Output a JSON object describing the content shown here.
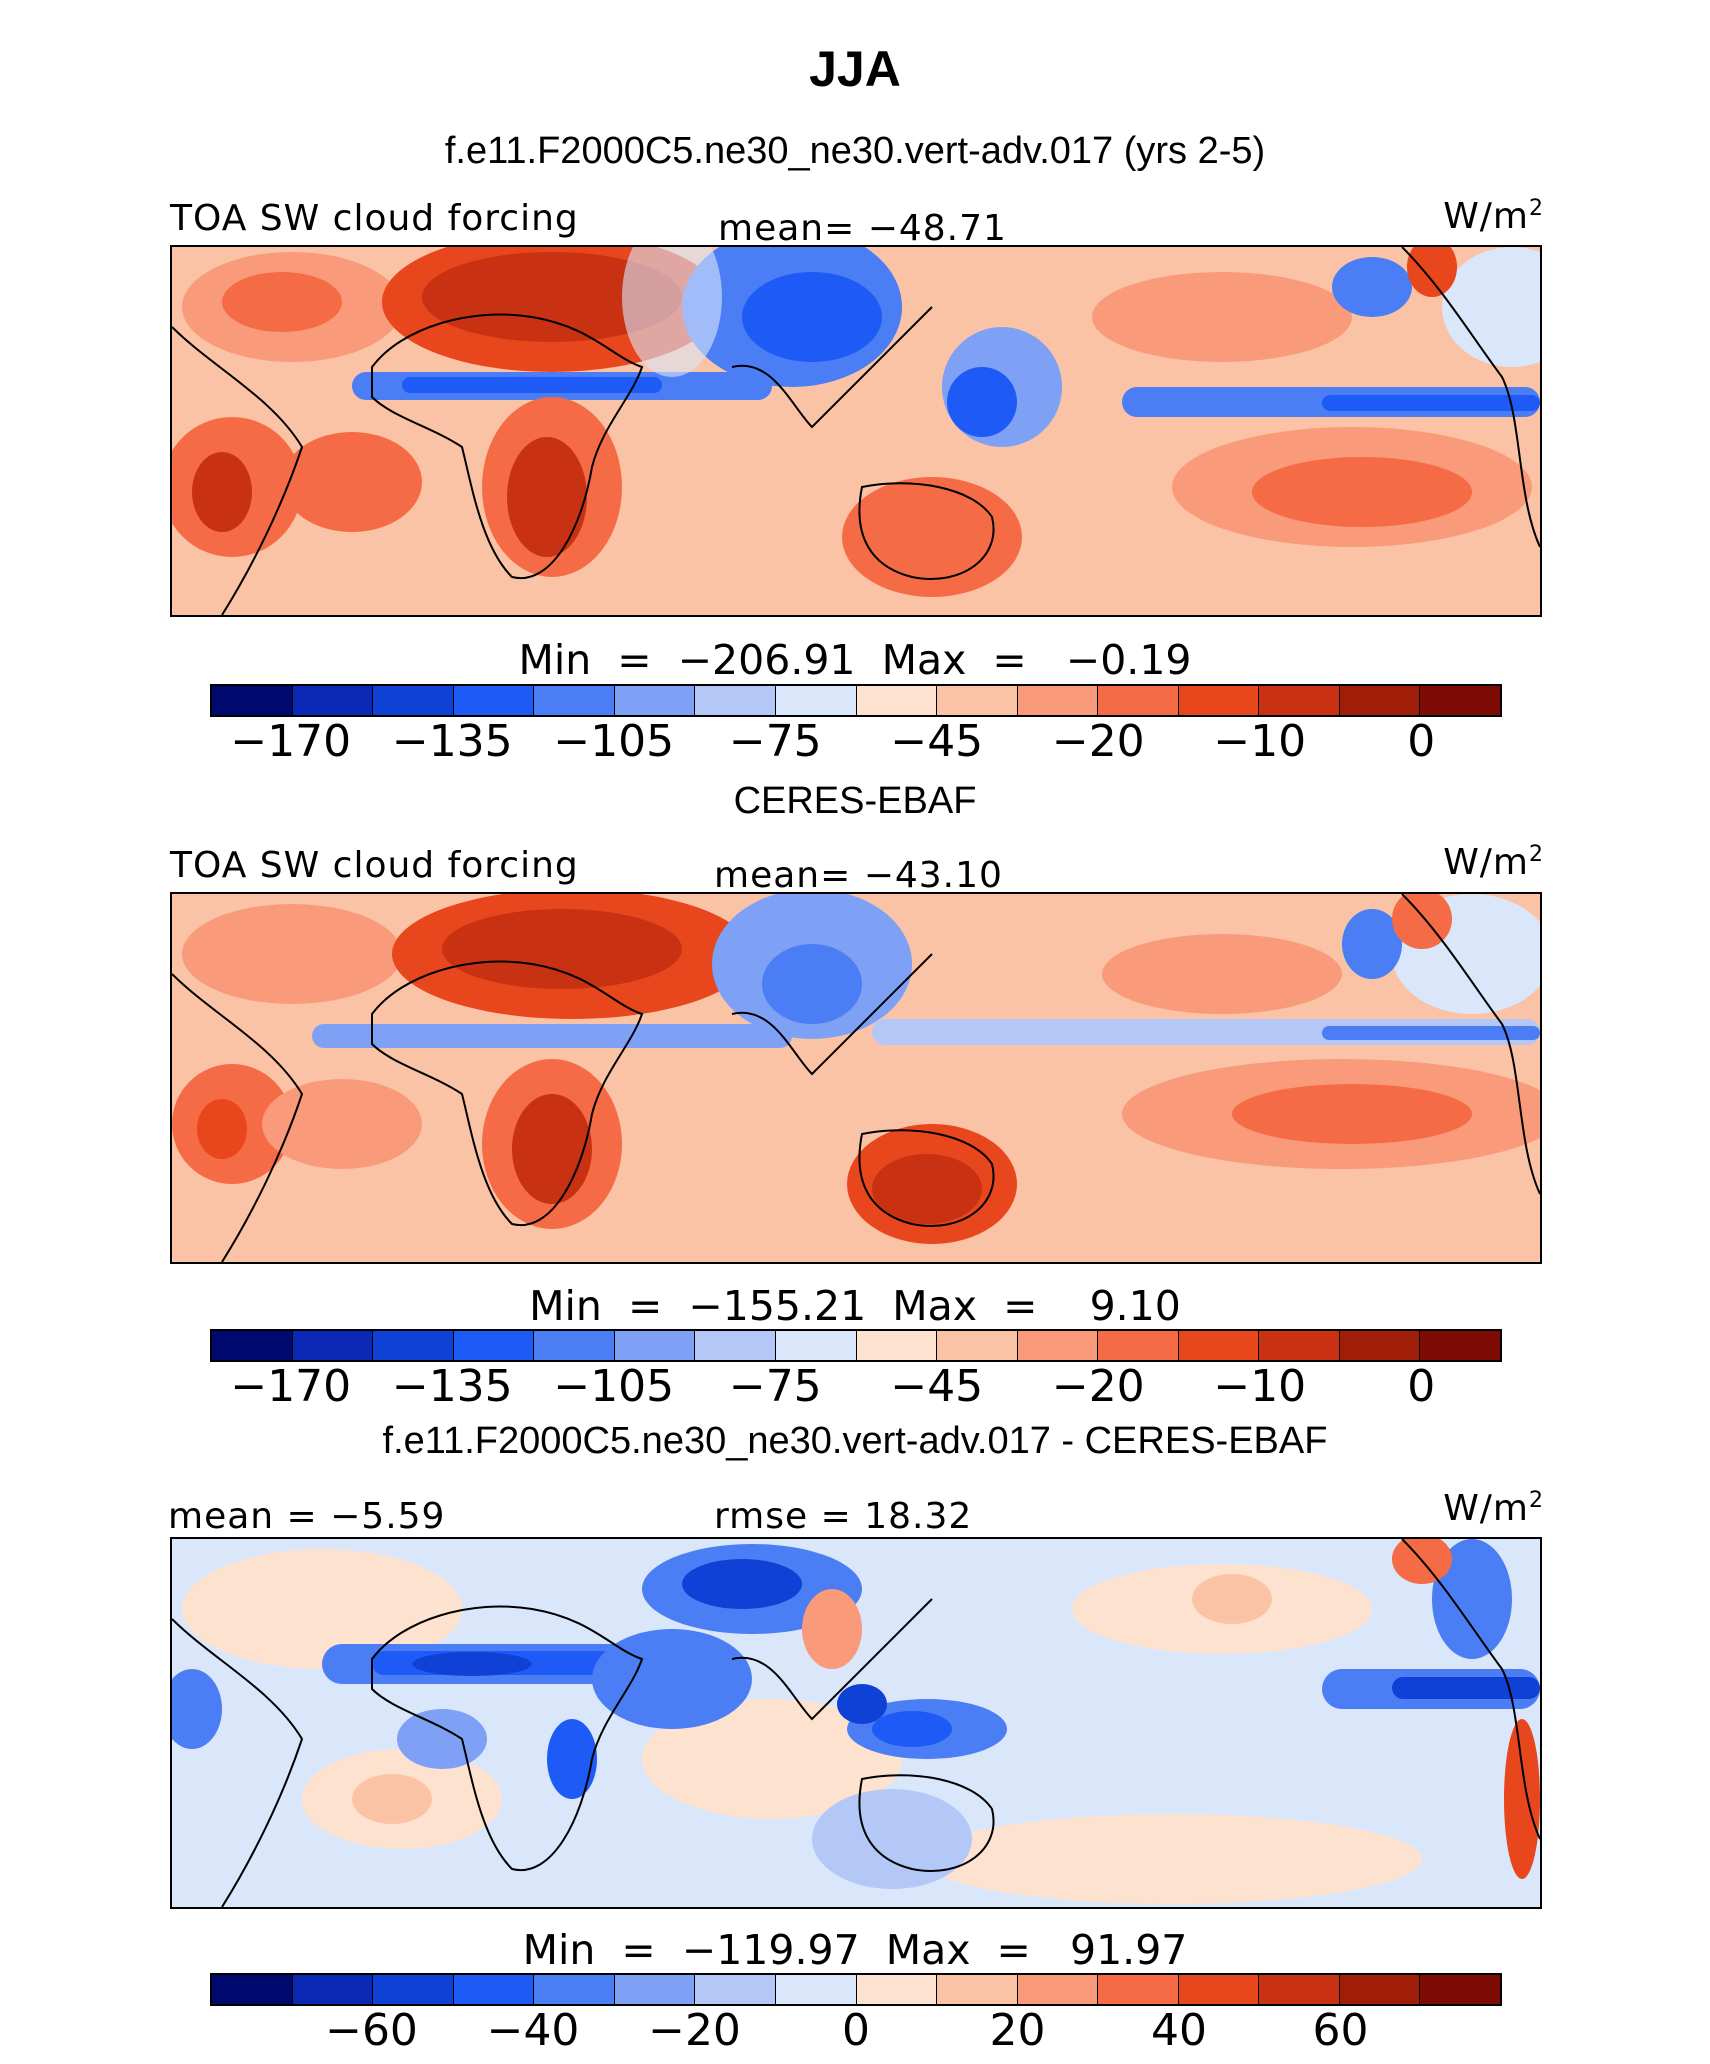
{
  "title": "JJA",
  "colors": {
    "model_scale": [
      "#000a6e",
      "#0a28b4",
      "#0f41d7",
      "#1e5af5",
      "#4b7df5",
      "#7ea0f5",
      "#b4c8f7",
      "#dae6fa",
      "#fde3cf",
      "#fbc3a6",
      "#f99b7a",
      "#f46b45",
      "#e8461c",
      "#c83212",
      "#a01e08",
      "#7d0a03"
    ],
    "diff_scale": [
      "#000a6e",
      "#0a28b4",
      "#0f41d7",
      "#1e5af5",
      "#4b7df5",
      "#7ea0f5",
      "#b4c8f7",
      "#dae6fa",
      "#fde3cf",
      "#fbc3a6",
      "#f99b7a",
      "#f46b45",
      "#e8461c",
      "#c83212",
      "#a01e08",
      "#7d0a03"
    ]
  },
  "panels": [
    {
      "title": "f.e11.F2000C5.ne30_ne30.vert-adv.017 (yrs 2-5)",
      "left_label": "TOA SW cloud forcing",
      "center_label": "mean=  −48.71",
      "units": "W/m",
      "units_exp": "2",
      "minmax": "Min  =  −206.91  Max  =   −0.19",
      "ticks": [
        "−170",
        "−135",
        "−105",
        "−75",
        "−45",
        "−20",
        "−10",
        "0"
      ],
      "field": {
        "min": -206.91,
        "max": -0.19,
        "mean": -48.71
      }
    },
    {
      "title": "CERES-EBAF",
      "left_label": "TOA SW cloud forcing",
      "center_label": "mean=  −43.10",
      "units": "W/m",
      "units_exp": "2",
      "minmax": "Min  =  −155.21  Max  =    9.10",
      "ticks": [
        "−170",
        "−135",
        "−105",
        "−75",
        "−45",
        "−20",
        "−10",
        "0"
      ],
      "field": {
        "min": -155.21,
        "max": 9.1,
        "mean": -43.1
      }
    },
    {
      "title": "f.e11.F2000C5.ne30_ne30.vert-adv.017 - CERES-EBAF",
      "left_label": "mean  =   −5.59",
      "center_label": "rmse  =   18.32",
      "units": "W/m",
      "units_exp": "2",
      "minmax": "Min  =  −119.97  Max  =   91.97",
      "ticks": [
        "−60",
        "−40",
        "−20",
        "0",
        "20",
        "40",
        "60"
      ],
      "field": {
        "min": -119.97,
        "max": 91.97,
        "mean": -5.59,
        "rmse": 18.32
      }
    }
  ]
}
